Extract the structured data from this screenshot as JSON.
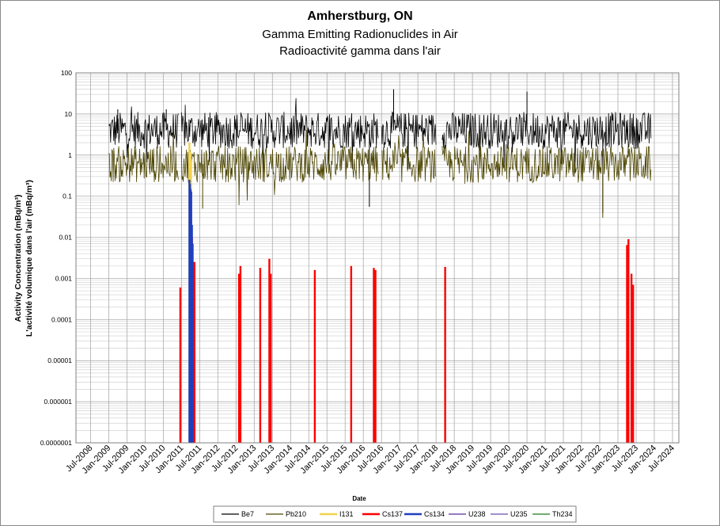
{
  "chart_data": {
    "type": "line",
    "title": "Amherstburg, ON",
    "subtitle_en": "Gamma Emitting Radionuclides in Air",
    "subtitle_fr": "Radioactivité gamma dans l'air",
    "xlabel": "Date",
    "ylabel_en": "Activity Concentration  (mBq/m³)",
    "ylabel_fr": "L'activité volumique dans l'air (mBq/m³)",
    "y_scale": "log",
    "ylim": [
      1e-07,
      100
    ],
    "y_ticks": [
      "100",
      "10",
      "1",
      "0.1",
      "0.01",
      "0.001",
      "0.0001",
      "0.00001",
      "0.000001",
      "0.0000001"
    ],
    "x_ticks": [
      "Jul-2008",
      "Jan-2009",
      "Jul-2009",
      "Jan-2010",
      "Jul-2010",
      "Jan-2011",
      "Jul-2011",
      "Jan-2012",
      "Jul-2012",
      "Jan-2013",
      "Jul-2013",
      "Jan-2014",
      "Jul-2014",
      "Jan-2015",
      "Jul-2015",
      "Jan-2016",
      "Jul-2016",
      "Jan-2017",
      "Jul-2017",
      "Jan-2018",
      "Jul-2018",
      "Jan-2019",
      "Jul-2019",
      "Jan-2020",
      "Jul-2020",
      "Jan-2021",
      "Jul-2021",
      "Jan-2022",
      "Jul-2022",
      "Jan-2023",
      "Jul-2023",
      "Jan-2024",
      "Jul-2024"
    ],
    "grid": true,
    "legend_position": "bottom",
    "series": [
      {
        "name": "Be7",
        "color": "#000000",
        "kind": "line",
        "typical": 4,
        "segments": [
          [
            "2009-01-01",
            "2010-12-01"
          ],
          [
            "2011-01-01",
            "2016-06-01"
          ],
          [
            "2016-07-01",
            "2018-01-01"
          ],
          [
            "2018-03-01",
            "2023-12-01"
          ]
        ],
        "peaks": [
          [
            "2009-04-01",
            13
          ],
          [
            "2010-08-01",
            13
          ],
          [
            "2016-11-01",
            40
          ],
          [
            "2020-07-01",
            35
          ],
          [
            "2016-03-01",
            0.055
          ],
          [
            "2022-08-01",
            0.04
          ]
        ]
      },
      {
        "name": "Pb210",
        "color": "#4d4500",
        "kind": "line",
        "typical": 0.6,
        "segments": [
          [
            "2009-01-01",
            "2010-12-01"
          ],
          [
            "2011-01-01",
            "2016-06-01"
          ],
          [
            "2016-07-01",
            "2018-01-01"
          ],
          [
            "2018-03-01",
            "2023-12-01"
          ]
        ],
        "peaks": [
          [
            "2022-08-01",
            0.03
          ],
          [
            "2011-08-01",
            0.05
          ]
        ]
      },
      {
        "name": "I131",
        "color": "#f2d34a",
        "kind": "bars",
        "points": [
          [
            "2011-03-20",
            2.0
          ],
          [
            "2011-03-28",
            1.2
          ],
          [
            "2011-04-06",
            0.8
          ]
        ]
      },
      {
        "name": "Cs137",
        "color": "#ff0000",
        "kind": "bars",
        "points": [
          [
            "2010-12-20",
            0.0006
          ],
          [
            "2011-03-25",
            0.05
          ],
          [
            "2011-04-05",
            0.03
          ],
          [
            "2011-04-15",
            0.01
          ],
          [
            "2011-05-01",
            0.0025
          ],
          [
            "2011-05-10",
            0.0025
          ],
          [
            "2012-08-01",
            0.0013
          ],
          [
            "2012-08-15",
            0.002
          ],
          [
            "2013-03-01",
            0.0018
          ],
          [
            "2013-06-01",
            0.003
          ],
          [
            "2013-06-15",
            0.0013
          ],
          [
            "2014-09-01",
            0.0016
          ],
          [
            "2015-09-01",
            0.002
          ],
          [
            "2016-04-15",
            0.0018
          ],
          [
            "2016-05-01",
            0.0016
          ],
          [
            "2018-04-01",
            0.0019
          ],
          [
            "2023-04-01",
            0.0065
          ],
          [
            "2023-04-15",
            0.009
          ],
          [
            "2023-05-15",
            0.0013
          ],
          [
            "2023-06-01",
            0.0007
          ]
        ]
      },
      {
        "name": "Cs134",
        "color": "#1f3fbf",
        "kind": "bars",
        "points": [
          [
            "2011-03-20",
            0.25
          ],
          [
            "2011-03-25",
            0.2
          ],
          [
            "2011-04-01",
            0.15
          ],
          [
            "2011-04-08",
            0.13
          ],
          [
            "2011-04-15",
            0.02
          ],
          [
            "2011-04-22",
            0.007
          ]
        ]
      },
      {
        "name": "U238",
        "color": "#5b2a9a",
        "kind": "line",
        "points": []
      },
      {
        "name": "U235",
        "color": "#6d4cb0",
        "kind": "line",
        "points": []
      },
      {
        "name": "Th234",
        "color": "#1f7a1f",
        "kind": "line",
        "points": []
      }
    ]
  }
}
